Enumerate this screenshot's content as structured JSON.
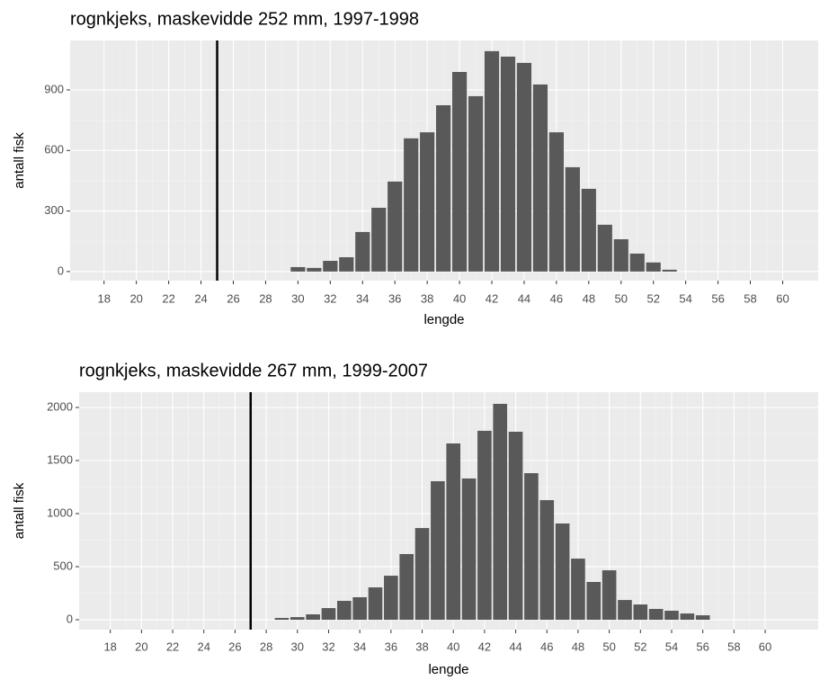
{
  "chart_data": [
    {
      "type": "bar",
      "title": "rognkjeks, maskevidde 252 mm, 1997-1998",
      "x_label": "lengde",
      "y_label": "antall fisk",
      "x": [
        30,
        31,
        32,
        33,
        34,
        35,
        36,
        37,
        38,
        39,
        40,
        41,
        42,
        43,
        44,
        45,
        46,
        47,
        48,
        49,
        50,
        51,
        52,
        53
      ],
      "values": [
        22,
        18,
        53,
        71,
        196,
        316,
        446,
        660,
        690,
        824,
        989,
        869,
        1092,
        1065,
        1034,
        927,
        690,
        517,
        410,
        232,
        160,
        89,
        45,
        9
      ],
      "color": "#595959",
      "vline": 25,
      "xlim": [
        15.9,
        62.2
      ],
      "ylim": [
        -45,
        1145
      ],
      "xticks": [
        18,
        20,
        22,
        24,
        26,
        28,
        30,
        32,
        34,
        36,
        38,
        40,
        42,
        44,
        46,
        48,
        50,
        52,
        54,
        56,
        58,
        60
      ],
      "yticks": [
        0,
        300,
        600,
        900
      ],
      "grid": true
    },
    {
      "type": "bar",
      "title": "rognkjeks, maskevidde 267 mm, 1999-2007",
      "x_label": "lengde",
      "y_label": "antall fisk",
      "x": [
        29,
        30,
        31,
        32,
        33,
        34,
        35,
        36,
        37,
        38,
        39,
        40,
        41,
        42,
        43,
        44,
        45,
        46,
        47,
        48,
        49,
        50,
        51,
        52,
        53,
        54,
        55,
        56
      ],
      "values": [
        17,
        25,
        51,
        110,
        178,
        212,
        305,
        415,
        619,
        864,
        1305,
        1661,
        1331,
        1780,
        2034,
        1771,
        1381,
        1127,
        907,
        576,
        356,
        466,
        186,
        144,
        102,
        85,
        59,
        42
      ],
      "color": "#595959",
      "vline": 27,
      "xlim": [
        16,
        63.4
      ],
      "ylim": [
        -93,
        2144
      ],
      "xticks": [
        18,
        20,
        22,
        24,
        26,
        28,
        30,
        32,
        34,
        36,
        38,
        40,
        42,
        44,
        46,
        48,
        50,
        52,
        54,
        56,
        58,
        60
      ],
      "yticks": [
        0,
        500,
        1000,
        1500,
        2000
      ],
      "grid": true
    }
  ]
}
